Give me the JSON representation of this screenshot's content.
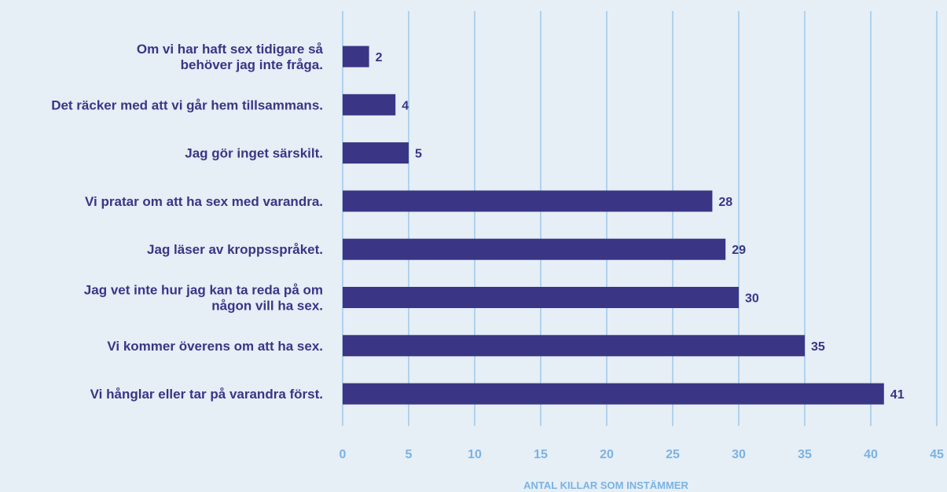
{
  "chart_data": {
    "type": "bar",
    "orientation": "horizontal",
    "categories": [
      "Om vi har haft sex tidigare så behöver jag inte fråga.",
      "Det räcker med att vi går hem tillsammans.",
      "Jag gör inget särskilt.",
      "Vi pratar om att ha sex med varandra.",
      "Jag läser av kroppsspråket.",
      "Jag vet inte hur jag kan ta reda på om någon vill ha sex.",
      "Vi kommer överens om att ha sex.",
      "Vi hånglar eller tar på varandra först."
    ],
    "category_lines": [
      [
        "Om vi har haft sex tidigare så",
        "behöver jag inte fråga."
      ],
      [
        "Det räcker med att vi går hem tillsammans."
      ],
      [
        "Jag gör inget särskilt."
      ],
      [
        "Vi pratar om att ha sex med varandra."
      ],
      [
        "Jag läser av kroppsspråket."
      ],
      [
        "Jag vet inte hur jag kan ta reda på om",
        "någon vill ha sex."
      ],
      [
        "Vi kommer överens om att ha sex."
      ],
      [
        "Vi hånglar eller tar på varandra först."
      ]
    ],
    "values": [
      2,
      4,
      5,
      28,
      29,
      30,
      35,
      41
    ],
    "value_labels": [
      "2",
      "4",
      "5",
      "28",
      "29",
      "30",
      "35",
      "41"
    ],
    "xlabel": "ANTAL KILLAR SOM INSTÄMMER",
    "xlim": [
      0,
      45
    ],
    "xticks": [
      0,
      5,
      10,
      15,
      20,
      25,
      30,
      35,
      40,
      45
    ],
    "xtick_labels": [
      "0",
      "5",
      "10",
      "15",
      "20",
      "25",
      "30",
      "35",
      "40",
      "45"
    ],
    "grid": "vertical",
    "colors": {
      "background": "#e6eef6",
      "bar": "#3a3585",
      "gridline": "#9ec8ec",
      "tick_text": "#7ab3e3",
      "label_text": "#3a3585"
    }
  }
}
